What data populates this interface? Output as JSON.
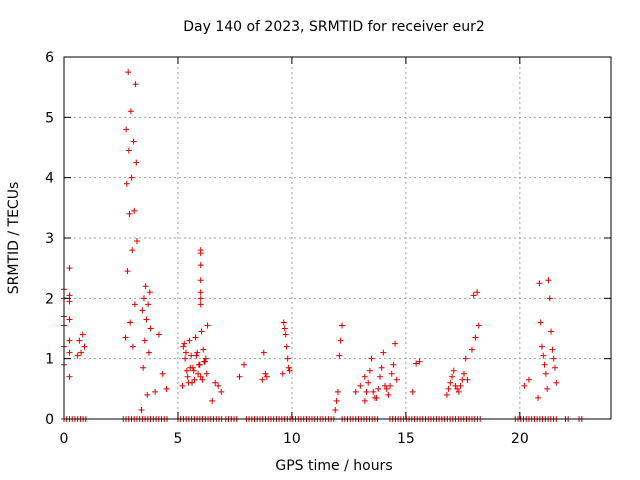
{
  "chart_data": {
    "type": "scatter",
    "title": "Day 140 of 2023, SRMTID for receiver eur2",
    "xlabel": "GPS time / hours",
    "ylabel": "SRMTID / TECUs",
    "xlim": [
      0,
      24
    ],
    "ylim": [
      0,
      6
    ],
    "x_ticks": [
      0,
      5,
      10,
      15,
      20
    ],
    "y_ticks": [
      0,
      1,
      2,
      3,
      4,
      5,
      6
    ],
    "grid": true,
    "marker": "plus",
    "color": "#dd0000",
    "clusters": [
      {
        "t0": 0.0,
        "t1": 0.45,
        "y": [
          0.0,
          0.7,
          0.9,
          1.1,
          1.2,
          1.3,
          1.55,
          1.65,
          1.7,
          1.95,
          2.0,
          2.05,
          2.15,
          2.5
        ]
      },
      {
        "t0": 0.6,
        "t1": 0.9,
        "y": [
          1.05,
          1.1,
          1.2,
          1.3,
          1.4
        ]
      },
      {
        "t0": 2.7,
        "t1": 3.2,
        "y": [
          1.35,
          1.6,
          1.9,
          2.45,
          2.8,
          2.95,
          3.4,
          3.45,
          3.9,
          4.0,
          4.25,
          4.45,
          4.6,
          4.8,
          5.1,
          5.55,
          5.75,
          1.2
        ]
      },
      {
        "t0": 3.4,
        "t1": 3.8,
        "y": [
          0.15,
          0.4,
          0.85,
          1.1,
          1.3,
          1.5,
          1.65,
          1.8,
          1.9,
          2.0,
          2.1,
          2.2
        ]
      },
      {
        "t0": 4.0,
        "t1": 4.5,
        "y": [
          0.45,
          0.5,
          0.75,
          1.4
        ]
      },
      {
        "t0": 5.2,
        "t1": 6.3,
        "y": [
          0.55,
          0.6,
          0.65,
          0.7,
          0.75,
          0.8,
          0.85,
          0.9,
          0.95,
          1.0,
          1.05,
          1.1,
          1.15,
          1.2,
          1.3,
          1.35,
          1.45,
          1.55,
          0.7,
          0.8,
          0.9,
          1.0,
          1.1,
          0.6,
          0.75,
          0.95,
          1.25,
          0.85,
          1.05,
          0.65
        ]
      },
      {
        "t0": 6.0,
        "t1": 6.3,
        "y": [
          1.9,
          2.0,
          2.1,
          2.3,
          2.55,
          2.75,
          2.8
        ]
      },
      {
        "t0": 6.5,
        "t1": 6.9,
        "y": [
          0.3,
          0.45,
          0.55,
          0.6
        ]
      },
      {
        "t0": 7.7,
        "t1": 7.9,
        "y": [
          0.7,
          0.9
        ]
      },
      {
        "t0": 8.7,
        "t1": 8.9,
        "y": [
          0.65,
          0.7,
          0.75,
          1.1
        ]
      },
      {
        "t0": 9.6,
        "t1": 9.9,
        "y": [
          0.75,
          0.8,
          0.85,
          1.0,
          1.2,
          1.4,
          1.5,
          1.6
        ]
      },
      {
        "t0": 11.9,
        "t1": 12.2,
        "y": [
          0.15,
          0.3,
          0.45,
          1.05,
          1.3,
          1.55
        ]
      },
      {
        "t0": 12.8,
        "t1": 13.2,
        "y": [
          0.45,
          0.55,
          0.7
        ]
      },
      {
        "t0": 13.2,
        "t1": 14.6,
        "y": [
          0.3,
          0.35,
          0.4,
          0.45,
          0.5,
          0.55,
          0.6,
          0.7,
          0.75,
          0.8,
          0.85,
          0.9,
          1.0,
          1.1,
          1.25,
          0.45,
          0.55,
          0.65,
          0.35,
          0.5
        ]
      },
      {
        "t0": 15.3,
        "t1": 15.6,
        "y": [
          0.45,
          0.92,
          0.95
        ]
      },
      {
        "t0": 16.8,
        "t1": 17.7,
        "y": [
          0.4,
          0.45,
          0.5,
          0.55,
          0.6,
          0.65,
          0.7,
          0.75,
          0.8,
          1.0,
          0.55,
          0.65,
          0.5
        ]
      },
      {
        "t0": 17.9,
        "t1": 18.2,
        "y": [
          1.15,
          1.35,
          1.55,
          2.05,
          2.1
        ]
      },
      {
        "t0": 20.2,
        "t1": 20.4,
        "y": [
          0.55,
          0.65
        ]
      },
      {
        "t0": 20.8,
        "t1": 21.6,
        "y": [
          0.35,
          0.5,
          0.6,
          0.75,
          0.85,
          0.9,
          1.0,
          1.05,
          1.15,
          1.2,
          1.45,
          1.6,
          2.0,
          2.25,
          2.3
        ]
      }
    ],
    "zero_ranges": [
      [
        0.0,
        1.0
      ],
      [
        2.6,
        4.6
      ],
      [
        5.0,
        7.0
      ],
      [
        7.1,
        7.6
      ],
      [
        8.0,
        11.9
      ],
      [
        12.2,
        13.8
      ],
      [
        14.3,
        18.3
      ],
      [
        19.8,
        21.6
      ],
      [
        22.0,
        22.2
      ],
      [
        22.6,
        22.8
      ]
    ]
  }
}
